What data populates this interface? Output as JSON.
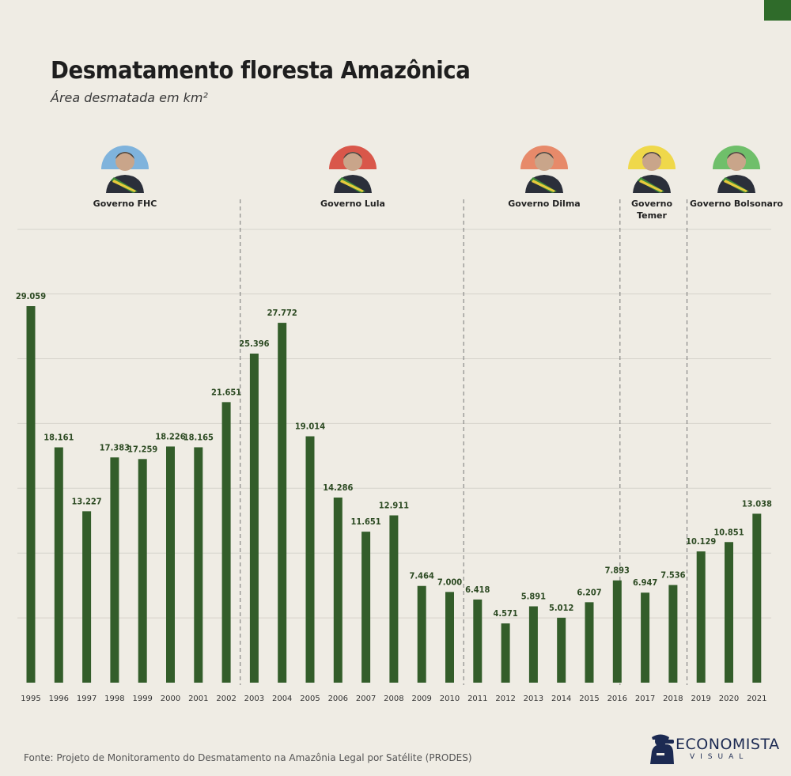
{
  "header": {
    "title": "Desmatamento floresta Amazônica",
    "subtitle": "Área desmatada em km²"
  },
  "footer": {
    "source": "Fonte: Projeto de Monitoramento do Desmatamento na Amazônia Legal por Satélite (PRODES)"
  },
  "logo": {
    "word": "ECONOMISTA",
    "sub": "VISUAL",
    "icon": "man-with-binoculars-icon"
  },
  "colors": {
    "bar": "#335d2a",
    "accent": "#2f6b2a",
    "background": "#efece4"
  },
  "chart_data": {
    "type": "bar",
    "title": "Desmatamento floresta Amazônica",
    "subtitle": "Área desmatada em km²",
    "xlabel": "",
    "ylabel": "",
    "ylim": [
      0,
      30000
    ],
    "grid": true,
    "categories": [
      "1995",
      "1996",
      "1997",
      "1998",
      "1999",
      "2000",
      "2001",
      "2002",
      "2003",
      "2004",
      "2005",
      "2006",
      "2007",
      "2008",
      "2009",
      "2010",
      "2011",
      "2012",
      "2013",
      "2014",
      "2015",
      "2016",
      "2017",
      "2018",
      "2019",
      "2020",
      "2021"
    ],
    "values": [
      29059,
      18161,
      13227,
      17383,
      17259,
      18226,
      18165,
      21651,
      25396,
      27772,
      19014,
      14286,
      11651,
      12911,
      7464,
      7000,
      6418,
      4571,
      5891,
      5012,
      6207,
      7893,
      6947,
      7536,
      10129,
      10851,
      13038
    ],
    "value_labels": [
      "29.059",
      "18.161",
      "13.227",
      "17.383",
      "17.259",
      "18.226",
      "18.165",
      "21.651",
      "25.396",
      "27.772",
      "19.014",
      "14.286",
      "11.651",
      "12.911",
      "7.464",
      "7.000",
      "6.418",
      "4.571",
      "5.891",
      "5.012",
      "6.207",
      "7.893",
      "6.947",
      "7.536",
      "10.129",
      "10.851",
      "13.038"
    ],
    "governments": [
      {
        "label": [
          "Governo FHC"
        ],
        "start": "1995",
        "end": "2002",
        "color": "#7fb3dc"
      },
      {
        "label": [
          "Governo Lula"
        ],
        "start": "2003",
        "end": "2010",
        "color": "#d9574a"
      },
      {
        "label": [
          "Governo Dilma"
        ],
        "start": "2011",
        "end": "2016",
        "color": "#e78a6a"
      },
      {
        "label": [
          "Governo",
          "Temer"
        ],
        "start": "2016",
        "end": "2018",
        "color": "#efd84a"
      },
      {
        "label": [
          "Governo Bolsonaro"
        ],
        "start": "2019",
        "end": "2021",
        "color": "#6fbf6a"
      }
    ]
  }
}
